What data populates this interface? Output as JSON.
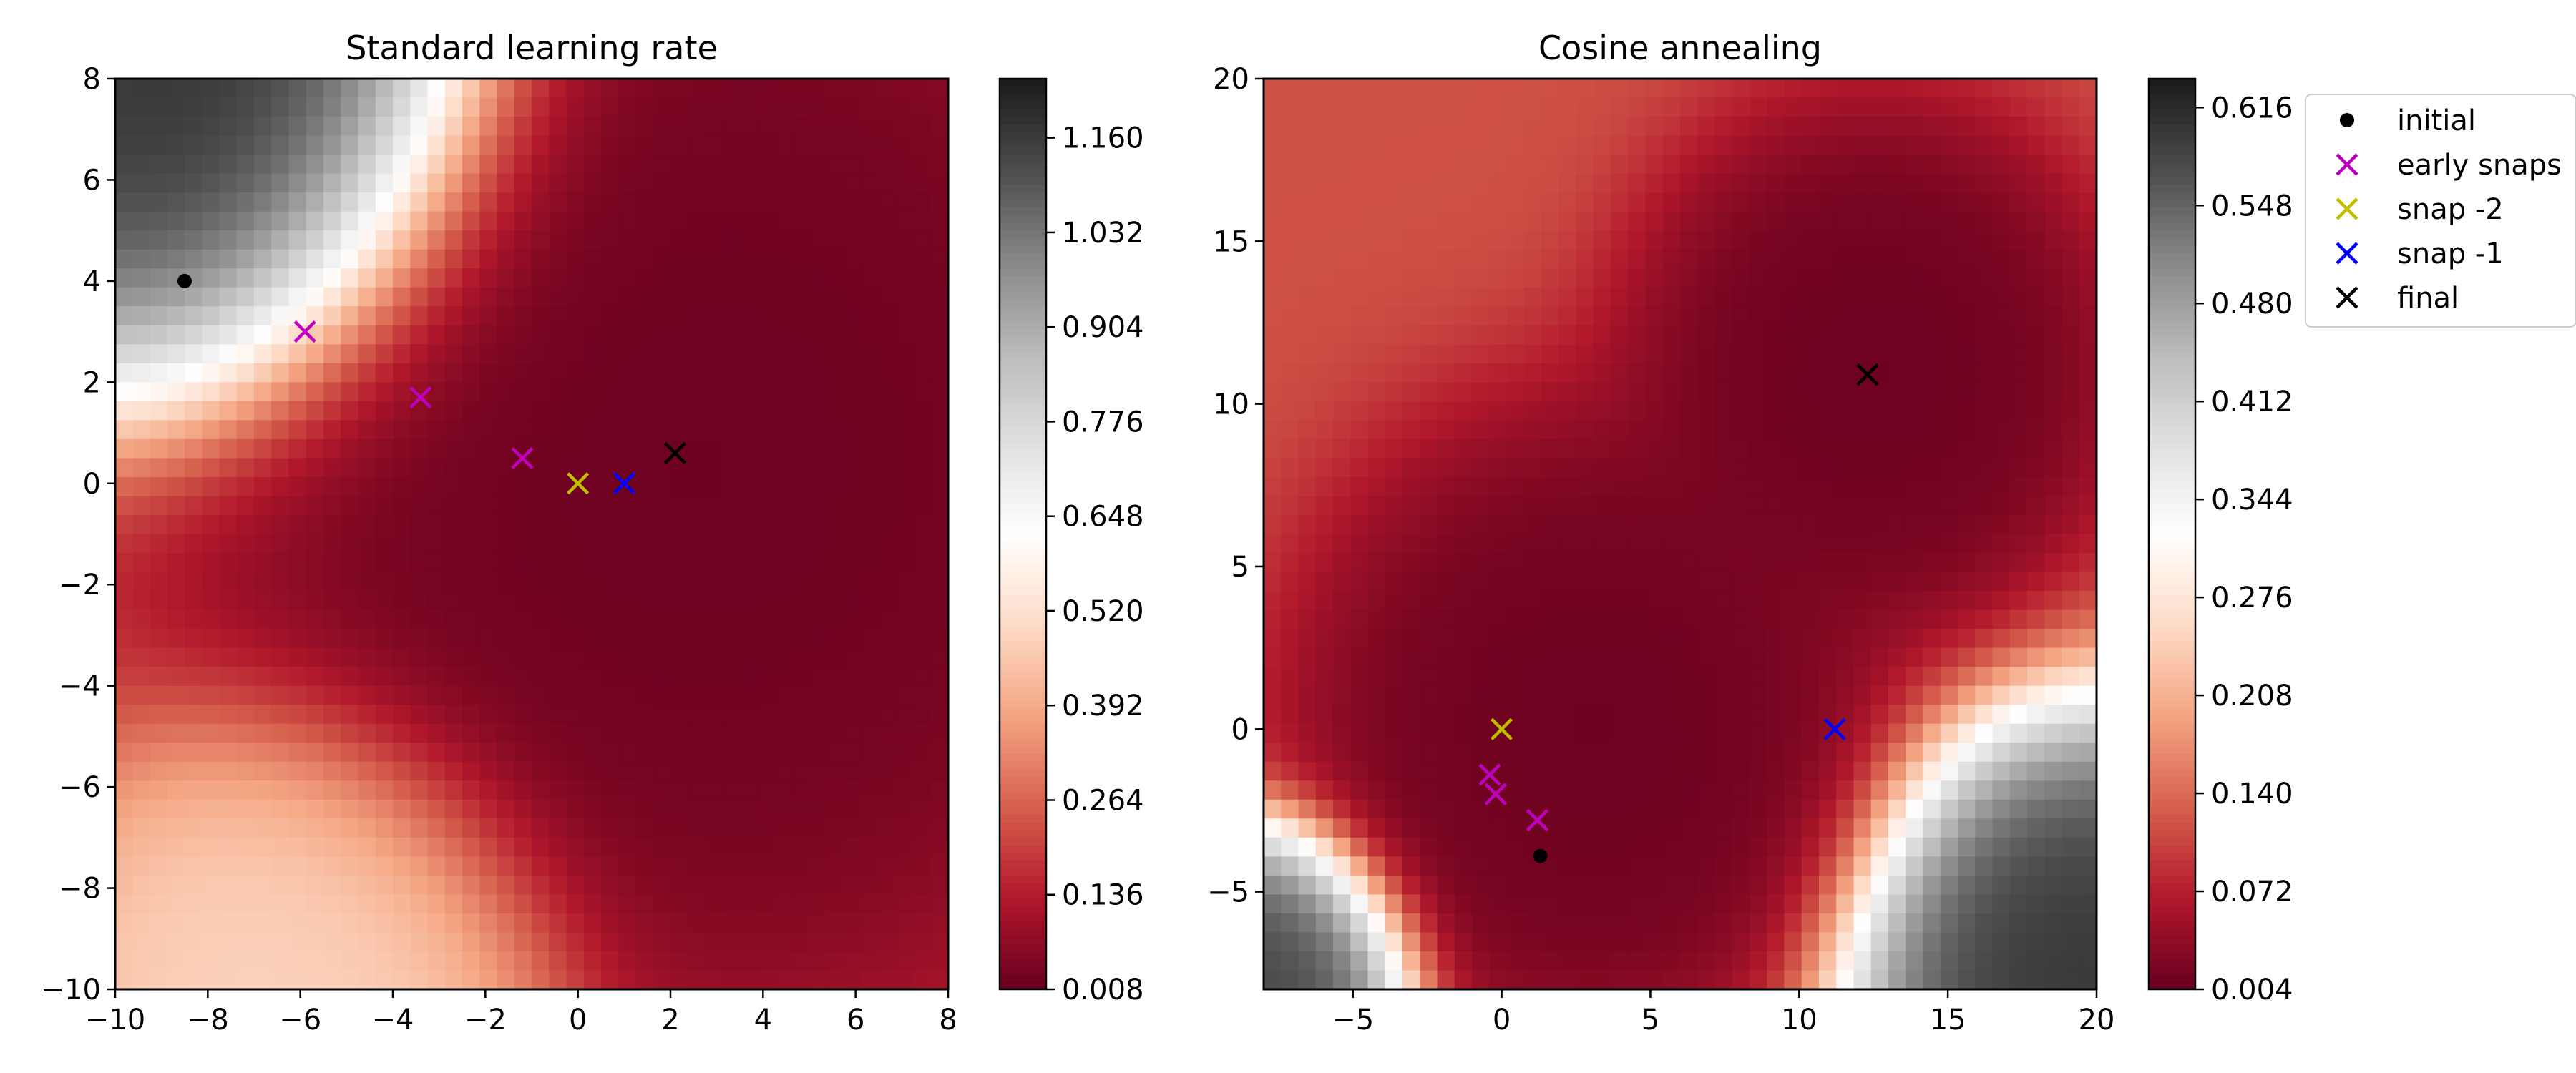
{
  "chart_data": [
    {
      "type": "heatmap",
      "title": "Standard learning rate",
      "xlim": [
        -10,
        8
      ],
      "ylim": [
        -10,
        8
      ],
      "xticks": [
        -10,
        -8,
        -6,
        -4,
        -2,
        0,
        2,
        4,
        6,
        8
      ],
      "xtick_labels": [
        "−10",
        "−8",
        "−6",
        "−4",
        "−2",
        "0",
        "2",
        "4",
        "6",
        "8"
      ],
      "yticks": [
        -10,
        -8,
        -6,
        -4,
        -2,
        0,
        2,
        4,
        6,
        8
      ],
      "ytick_labels": [
        "−10",
        "−8",
        "−6",
        "−4",
        "−2",
        "0",
        "2",
        "4",
        "6",
        "8"
      ],
      "colorbar": {
        "range": [
          0.008,
          1.24
        ],
        "ticks": [
          0.008,
          0.136,
          0.264,
          0.392,
          0.52,
          0.648,
          0.776,
          0.904,
          1.032,
          1.16
        ],
        "tick_labels": [
          "0.008",
          "0.136",
          "0.264",
          "0.392",
          "0.520",
          "0.648",
          "0.776",
          "0.904",
          "1.032",
          "1.160"
        ]
      },
      "surface_peaks": [
        {
          "x": 2.5,
          "y": 0.5,
          "value": 0.008,
          "spread": 7
        },
        {
          "x": -6,
          "y": -10,
          "value": 0.5,
          "spread": 3.5
        },
        {
          "x": -8,
          "y": 8,
          "value": 1.24,
          "spread": 4
        }
      ],
      "points": [
        {
          "series": "initial",
          "x": -8.5,
          "y": 4.0
        },
        {
          "series": "early snaps",
          "x": -5.9,
          "y": 3.0
        },
        {
          "series": "early snaps",
          "x": -3.4,
          "y": 1.7
        },
        {
          "series": "early snaps",
          "x": -1.2,
          "y": 0.5
        },
        {
          "series": "snap -2",
          "x": 0.0,
          "y": 0.0
        },
        {
          "series": "snap -1",
          "x": 1.0,
          "y": 0.0
        },
        {
          "series": "final",
          "x": 2.1,
          "y": 0.6
        }
      ]
    },
    {
      "type": "heatmap",
      "title": "Cosine annealing",
      "xlim": [
        -8,
        20
      ],
      "ylim": [
        -8,
        20
      ],
      "xticks": [
        -5,
        0,
        5,
        10,
        15,
        20
      ],
      "xtick_labels": [
        "−5",
        "0",
        "5",
        "10",
        "15",
        "20"
      ],
      "yticks": [
        -5,
        0,
        5,
        10,
        15,
        20
      ],
      "ytick_labels": [
        "−5",
        "0",
        "5",
        "10",
        "15",
        "20"
      ],
      "colorbar": {
        "range": [
          0.004,
          0.636
        ],
        "ticks": [
          0.004,
          0.072,
          0.14,
          0.208,
          0.276,
          0.344,
          0.412,
          0.48,
          0.548,
          0.616
        ],
        "tick_labels": [
          "0.004",
          "0.072",
          "0.140",
          "0.208",
          "0.276",
          "0.344",
          "0.412",
          "0.480",
          "0.548",
          "0.616"
        ]
      },
      "surface_peaks": [
        {
          "x": 3,
          "y": 0,
          "value": 0.004,
          "spread": 6
        },
        {
          "x": 12.5,
          "y": 11,
          "value": 0.004,
          "spread": 5
        },
        {
          "x": 20,
          "y": -8,
          "value": 0.62,
          "spread": 5
        },
        {
          "x": -8,
          "y": -8,
          "value": 0.6,
          "spread": 3
        }
      ],
      "points": [
        {
          "series": "initial",
          "x": 1.3,
          "y": -3.9
        },
        {
          "series": "early snaps",
          "x": 1.2,
          "y": -2.8
        },
        {
          "series": "early snaps",
          "x": -0.2,
          "y": -2.0
        },
        {
          "series": "early snaps",
          "x": -0.4,
          "y": -1.4
        },
        {
          "series": "snap -2",
          "x": 0.0,
          "y": 0.0
        },
        {
          "series": "snap -1",
          "x": 11.2,
          "y": 0.0
        },
        {
          "series": "final",
          "x": 12.3,
          "y": 10.9
        }
      ]
    }
  ],
  "legend": {
    "placement": "upper-right outside",
    "entries": [
      {
        "label": "initial",
        "marker": "dot",
        "color": "#000000"
      },
      {
        "label": "early snaps",
        "marker": "x",
        "color": "#bf00bf"
      },
      {
        "label": "snap -2",
        "marker": "x",
        "color": "#bfbf00"
      },
      {
        "label": "snap -1",
        "marker": "x",
        "color": "#0000ff"
      },
      {
        "label": "final",
        "marker": "x",
        "color": "#000000"
      }
    ]
  },
  "colormap": {
    "name": "RdGy",
    "stops": [
      "#67001f",
      "#b2182b",
      "#d6604d",
      "#f4a582",
      "#fddbc7",
      "#ffffff",
      "#e0e0e0",
      "#bababa",
      "#878787",
      "#4d4d4d",
      "#1a1a1a"
    ]
  }
}
